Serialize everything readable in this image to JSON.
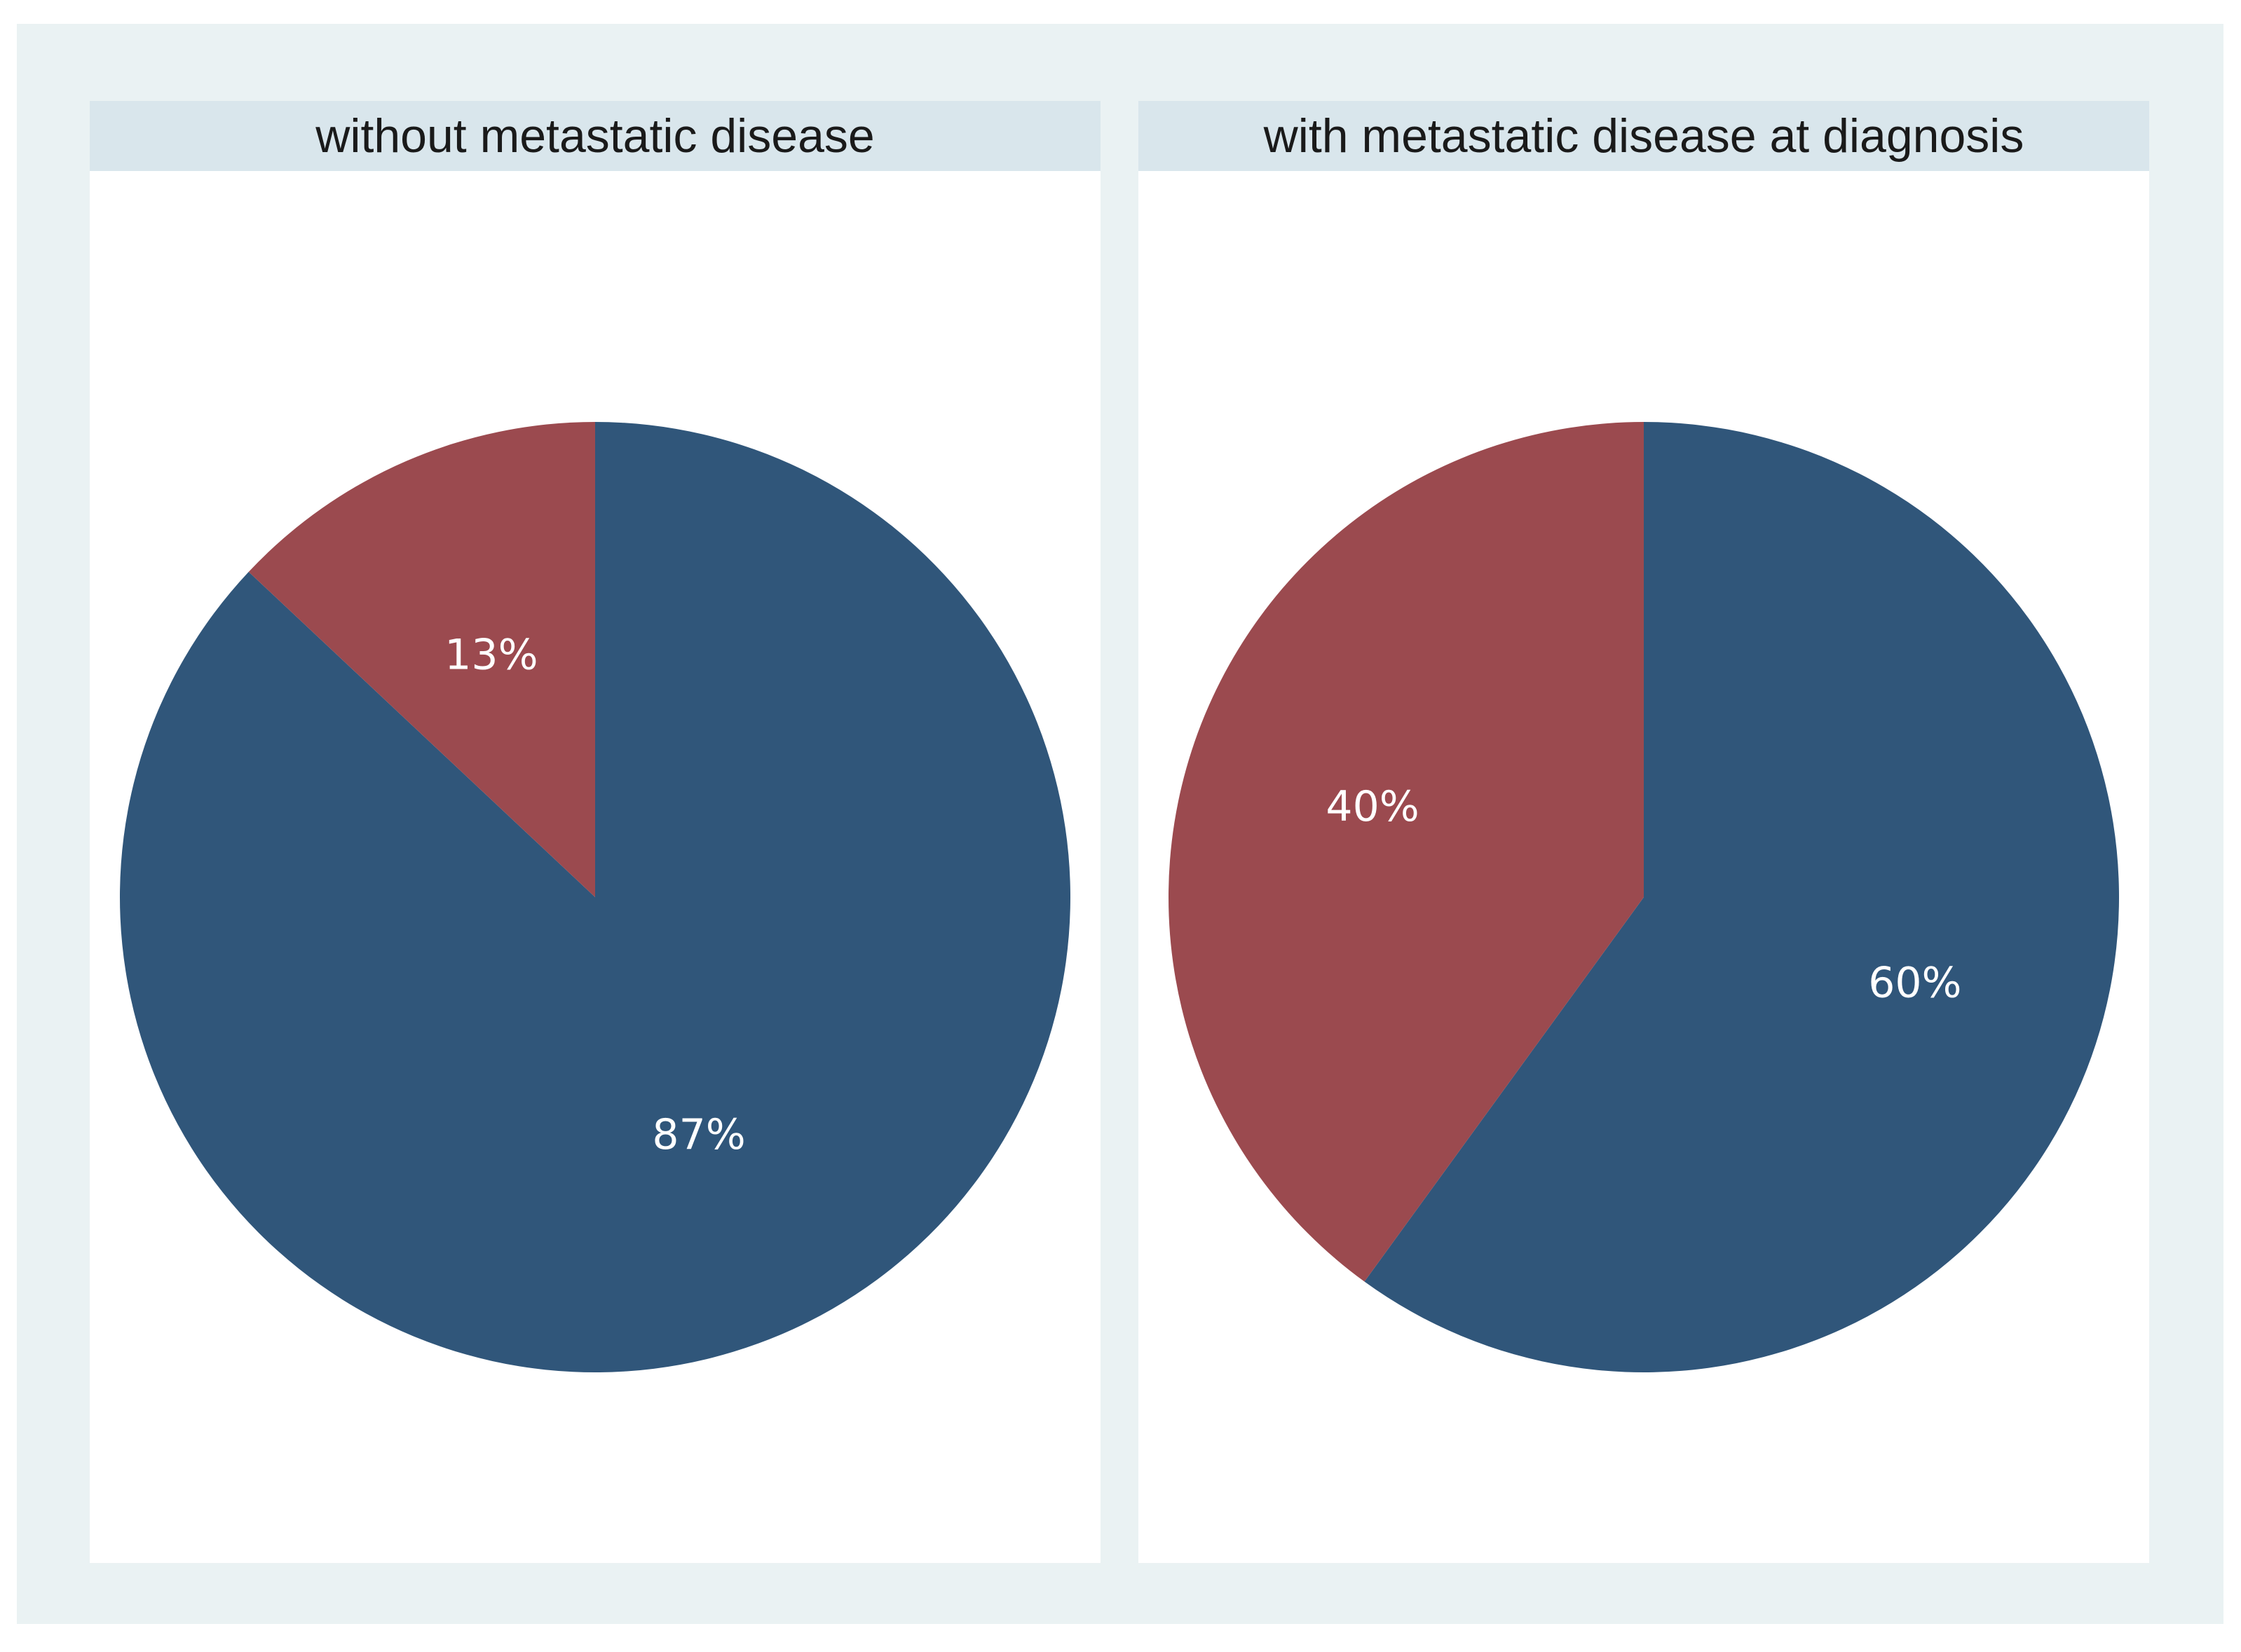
{
  "chart_data": [
    {
      "type": "pie",
      "title": "without metastatic disease",
      "slices": [
        {
          "value": 87,
          "label": "87%",
          "color": "#30567a"
        },
        {
          "value": 13,
          "label": "13%",
          "color": "#9b4a4f"
        }
      ]
    },
    {
      "type": "pie",
      "title": "with metastatic disease at diagnosis",
      "slices": [
        {
          "value": 60,
          "label": "60%",
          "color": "#30567a"
        },
        {
          "value": 40,
          "label": "40%",
          "color": "#9b4a4f"
        }
      ]
    }
  ],
  "colors": {
    "outer_background": "#eaf2f3",
    "header_background": "#d9e6ec",
    "panel_background": "#ffffff"
  }
}
